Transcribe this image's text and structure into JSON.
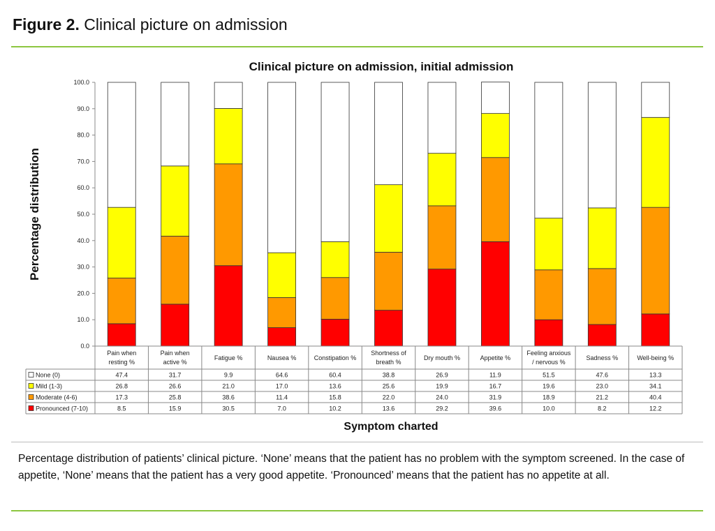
{
  "figure": {
    "label": "Figure 2.",
    "title": "Clinical picture on admission"
  },
  "caption": "Percentage distribution of patients’ clinical picture. ‘None’ means that the patient has no problem with the symptom screened. In the case of appetite, ‘None’ means that the patient has a very good appetite. ‘Pronounced’ means that the patient has no appetite at all.",
  "chart_data": {
    "type": "bar",
    "stacked": true,
    "title": "Clinical picture on admission, initial admission",
    "xlabel": "Symptom charted",
    "ylabel": "Percentage distribution",
    "ylim": [
      0,
      100
    ],
    "yticks": [
      "0.0",
      "10.0",
      "20.0",
      "30.0",
      "40.0",
      "50.0",
      "60.0",
      "70.0",
      "80.0",
      "90.0",
      "100.0"
    ],
    "categories": [
      [
        "Pain when",
        "resting %"
      ],
      [
        "Pain when",
        "active %"
      ],
      [
        "Fatigue %"
      ],
      [
        "Nausea %"
      ],
      [
        "Constipation %"
      ],
      [
        "Shortness of",
        "breath %"
      ],
      [
        "Dry mouth %"
      ],
      [
        "Appetite %"
      ],
      [
        "Feeling anxious",
        "/ nervous %"
      ],
      [
        "Sadness %"
      ],
      [
        "Well-being %"
      ]
    ],
    "series": [
      {
        "name": "None (0)",
        "color": "#ffffff",
        "values": [
          "47.4",
          "31.7",
          "9.9",
          "64.6",
          "60.4",
          "38.8",
          "26.9",
          "11.9",
          "51.5",
          "47.6",
          "13.3"
        ]
      },
      {
        "name": "Mild (1-3)",
        "color": "#ffff00",
        "values": [
          "26.8",
          "26.6",
          "21.0",
          "17.0",
          "13.6",
          "25.6",
          "19.9",
          "16.7",
          "19.6",
          "23.0",
          "34.1"
        ]
      },
      {
        "name": "Moderate (4-6)",
        "color": "#ff9900",
        "values": [
          "17.3",
          "25.8",
          "38.6",
          "11.4",
          "15.8",
          "22.0",
          "24.0",
          "31.9",
          "18.9",
          "21.2",
          "40.4"
        ]
      },
      {
        "name": "Pronounced (7-10)",
        "color": "#ff0000",
        "values": [
          "8.5",
          "15.9",
          "30.5",
          "7.0",
          "10.2",
          "13.6",
          "29.2",
          "39.6",
          "10.0",
          "8.2",
          "12.2"
        ]
      }
    ],
    "grid": false,
    "legend": "data-table"
  }
}
